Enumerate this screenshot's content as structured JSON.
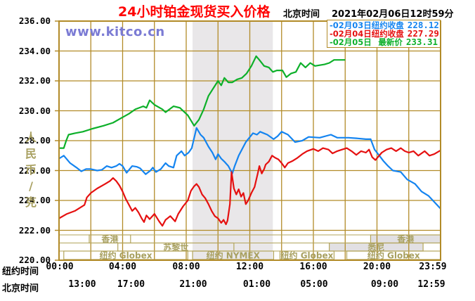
{
  "header": {
    "title": "24小时铂金现货买入价格",
    "clock_label": "北京时间",
    "clock_value": "2021年02月06日12时59分"
  },
  "watermark": "www.kitco.cn",
  "colors": {
    "title": "#FF0000",
    "watermark": "#7B7BD4",
    "grid": "#B28B28",
    "session_border": "#B3A55C",
    "session_text": "#A8A060",
    "band": "#E9E7E9",
    "session_fill": "#E2E0E3",
    "text": "#000000"
  },
  "chart_data": {
    "type": "line",
    "title": "24小时铂金现货买入价格",
    "ylabel": "人民币/克",
    "ylim": [
      220,
      236
    ],
    "y_ticks": [
      "236.00",
      "234.00",
      "232.00",
      "230.00",
      "228.00",
      "226.00",
      "224.00",
      "222.00",
      "220.00"
    ],
    "grid": true,
    "legend_position": "top-right",
    "x_range_hours": [
      0,
      24
    ],
    "x_ticks_newyork": {
      "name": "纽约时间",
      "hours": [
        0,
        4,
        8,
        12,
        16,
        20,
        24
      ],
      "labels": [
        "00:00",
        "04:00",
        "08:00",
        "12:00",
        "16:00",
        "20:00",
        "23:59"
      ]
    },
    "x_ticks_beijing": {
      "name": "北京时间",
      "hours": [
        0,
        4,
        8,
        12,
        16,
        20,
        24
      ],
      "labels": [
        "13:00",
        "17:00",
        "21:00",
        "01:00",
        "05:00",
        "09:00",
        "12:59"
      ]
    },
    "shaded_band_hours": [
      8.4,
      13.45
    ],
    "sessions": [
      {
        "row": 0,
        "start": 1.9,
        "end": 4.5,
        "label": "香港",
        "fill": "none"
      },
      {
        "row": 0,
        "start": 19.6,
        "end": 24,
        "label": "香港",
        "fill": "gray"
      },
      {
        "row": 1,
        "start": 3.7,
        "end": 11.0,
        "label": "苏黎世",
        "fill": "none"
      },
      {
        "row": 1,
        "start": 17.0,
        "end": 22.9,
        "label": "悉尼",
        "fill": "gray"
      },
      {
        "row": 2,
        "start": 0.3,
        "end": 8.1,
        "label": "纽约 Globex",
        "fill": "none"
      },
      {
        "row": 2,
        "start": 8.4,
        "end": 13.5,
        "label": "纽约 NYMEX",
        "fill": "none"
      },
      {
        "row": 2,
        "start": 13.9,
        "end": 17.3,
        "label": "纽约 Globex",
        "fill": "none"
      },
      {
        "row": 2,
        "start": 18.1,
        "end": 24,
        "label": "纽约 Globex",
        "fill": "none"
      }
    ],
    "series": [
      {
        "marker": "-",
        "name": "02月03日",
        "legend_label": "纽约收盘",
        "legend_value": "228.12",
        "color": "#1484F0",
        "points": [
          [
            0,
            226.8
          ],
          [
            0.3,
            227.0
          ],
          [
            0.7,
            226.5
          ],
          [
            1.1,
            226.2
          ],
          [
            1.4,
            225.95
          ],
          [
            1.7,
            226.1
          ],
          [
            2.0,
            226.1
          ],
          [
            2.4,
            226.0
          ],
          [
            2.7,
            226.05
          ],
          [
            3.0,
            226.3
          ],
          [
            3.3,
            226.2
          ],
          [
            3.6,
            226.3
          ],
          [
            3.8,
            226.45
          ],
          [
            4.0,
            226.3
          ],
          [
            4.25,
            225.85
          ],
          [
            4.6,
            226.3
          ],
          [
            4.9,
            226.25
          ],
          [
            5.1,
            226.15
          ],
          [
            5.45,
            225.75
          ],
          [
            5.75,
            226.0
          ],
          [
            5.9,
            226.2
          ],
          [
            6.1,
            225.9
          ],
          [
            6.4,
            226.1
          ],
          [
            6.7,
            226.5
          ],
          [
            6.9,
            226.3
          ],
          [
            7.2,
            226.2
          ],
          [
            7.4,
            227.0
          ],
          [
            7.7,
            227.3
          ],
          [
            7.9,
            227.0
          ],
          [
            8.15,
            227.2
          ],
          [
            8.35,
            227.5
          ],
          [
            8.65,
            228.85
          ],
          [
            8.9,
            228.4
          ],
          [
            9.1,
            228.2
          ],
          [
            9.4,
            227.6
          ],
          [
            9.65,
            227.2
          ],
          [
            9.85,
            226.75
          ],
          [
            10.0,
            227.1
          ],
          [
            10.2,
            226.8
          ],
          [
            10.4,
            226.6
          ],
          [
            10.65,
            226.3
          ],
          [
            10.9,
            225.8
          ],
          [
            11.05,
            226.3
          ],
          [
            11.3,
            227.0
          ],
          [
            11.75,
            227.9
          ],
          [
            12.2,
            228.5
          ],
          [
            12.45,
            228.4
          ],
          [
            12.65,
            228.6
          ],
          [
            13.1,
            228.4
          ],
          [
            13.5,
            228.1
          ],
          [
            13.75,
            228.3
          ],
          [
            14.0,
            228.6
          ],
          [
            14.4,
            228.4
          ],
          [
            14.85,
            227.9
          ],
          [
            15.3,
            228.0
          ],
          [
            15.7,
            228.25
          ],
          [
            16.4,
            228.2
          ],
          [
            17.1,
            228.4
          ],
          [
            17.5,
            228.2
          ],
          [
            18.2,
            228.2
          ],
          [
            18.8,
            228.15
          ],
          [
            19.3,
            228.1
          ],
          [
            19.6,
            228.1
          ],
          [
            19.85,
            227.4
          ],
          [
            20.15,
            227.0
          ],
          [
            20.4,
            226.65
          ],
          [
            20.7,
            226.3
          ],
          [
            21.0,
            226.0
          ],
          [
            21.5,
            225.9
          ],
          [
            21.9,
            225.4
          ],
          [
            22.4,
            225.1
          ],
          [
            22.8,
            224.6
          ],
          [
            23.25,
            224.3
          ],
          [
            23.6,
            223.9
          ],
          [
            24,
            223.45
          ]
        ]
      },
      {
        "marker": "-",
        "name": "02月04日",
        "legend_label": "纽约收盘",
        "legend_value": "227.29",
        "color": "#E51010",
        "points": [
          [
            0,
            222.8
          ],
          [
            0.5,
            223.1
          ],
          [
            1.0,
            223.3
          ],
          [
            1.6,
            223.7
          ],
          [
            1.75,
            224.2
          ],
          [
            2.0,
            224.5
          ],
          [
            2.4,
            224.8
          ],
          [
            2.9,
            225.1
          ],
          [
            3.2,
            225.3
          ],
          [
            3.4,
            225.5
          ],
          [
            3.6,
            225.3
          ],
          [
            3.8,
            225.0
          ],
          [
            4.0,
            224.6
          ],
          [
            4.2,
            224.1
          ],
          [
            4.4,
            223.7
          ],
          [
            4.6,
            223.3
          ],
          [
            4.8,
            223.5
          ],
          [
            5.0,
            223.2
          ],
          [
            5.2,
            222.8
          ],
          [
            5.35,
            222.55
          ],
          [
            5.5,
            223.0
          ],
          [
            5.7,
            222.75
          ],
          [
            6.0,
            223.1
          ],
          [
            6.3,
            222.6
          ],
          [
            6.5,
            222.3
          ],
          [
            6.7,
            222.7
          ],
          [
            7.0,
            222.95
          ],
          [
            7.3,
            222.6
          ],
          [
            7.5,
            223.1
          ],
          [
            7.8,
            223.6
          ],
          [
            8.1,
            224.0
          ],
          [
            8.3,
            224.65
          ],
          [
            8.5,
            224.95
          ],
          [
            8.65,
            225.1
          ],
          [
            8.8,
            224.9
          ],
          [
            9.0,
            224.4
          ],
          [
            9.2,
            224.15
          ],
          [
            9.4,
            223.75
          ],
          [
            9.6,
            223.3
          ],
          [
            9.8,
            222.95
          ],
          [
            10.0,
            222.8
          ],
          [
            10.2,
            222.5
          ],
          [
            10.35,
            222.7
          ],
          [
            10.5,
            222.4
          ],
          [
            10.6,
            222.65
          ],
          [
            10.75,
            223.75
          ],
          [
            10.85,
            225.9
          ],
          [
            11.0,
            224.8
          ],
          [
            11.15,
            224.4
          ],
          [
            11.3,
            224.75
          ],
          [
            11.45,
            224.25
          ],
          [
            11.6,
            224.5
          ],
          [
            11.75,
            223.75
          ],
          [
            11.9,
            224.0
          ],
          [
            12.1,
            224.5
          ],
          [
            12.3,
            224.9
          ],
          [
            12.5,
            225.8
          ],
          [
            12.6,
            226.3
          ],
          [
            12.75,
            225.8
          ],
          [
            12.9,
            226.1
          ],
          [
            13.0,
            226.4
          ],
          [
            13.2,
            226.6
          ],
          [
            13.4,
            227.0
          ],
          [
            13.6,
            226.85
          ],
          [
            13.8,
            226.75
          ],
          [
            14.0,
            226.5
          ],
          [
            14.2,
            226.2
          ],
          [
            14.4,
            226.5
          ],
          [
            14.7,
            226.65
          ],
          [
            15.0,
            226.85
          ],
          [
            15.3,
            227.1
          ],
          [
            15.6,
            227.3
          ],
          [
            16.0,
            227.45
          ],
          [
            16.3,
            227.3
          ],
          [
            16.6,
            227.5
          ],
          [
            16.95,
            227.4
          ],
          [
            17.2,
            227.15
          ],
          [
            17.5,
            227.3
          ],
          [
            17.8,
            227.4
          ],
          [
            18.1,
            227.5
          ],
          [
            18.4,
            227.3
          ],
          [
            18.7,
            227.05
          ],
          [
            19.0,
            227.3
          ],
          [
            19.3,
            227.2
          ],
          [
            19.5,
            227.4
          ],
          [
            19.7,
            226.9
          ],
          [
            19.9,
            226.7
          ],
          [
            20.3,
            227.2
          ],
          [
            20.6,
            227.4
          ],
          [
            20.9,
            227.5
          ],
          [
            21.2,
            227.3
          ],
          [
            21.5,
            227.5
          ],
          [
            21.75,
            227.3
          ],
          [
            22.0,
            227.2
          ],
          [
            22.3,
            227.3
          ],
          [
            22.6,
            227.0
          ],
          [
            23.0,
            227.3
          ],
          [
            23.3,
            227.0
          ],
          [
            23.6,
            227.1
          ],
          [
            24,
            227.35
          ]
        ]
      },
      {
        "marker": "-",
        "name": "02月05日",
        "legend_label": "最新价",
        "legend_value": "233.31",
        "color": "#0DB02A",
        "points": [
          [
            0,
            227.5
          ],
          [
            0.3,
            227.5
          ],
          [
            0.45,
            228.0
          ],
          [
            0.6,
            228.4
          ],
          [
            1.0,
            228.5
          ],
          [
            1.5,
            228.6
          ],
          [
            2.1,
            228.8
          ],
          [
            2.8,
            229.0
          ],
          [
            3.4,
            229.2
          ],
          [
            3.9,
            229.5
          ],
          [
            4.4,
            229.8
          ],
          [
            4.8,
            230.1
          ],
          [
            5.3,
            230.3
          ],
          [
            5.5,
            230.2
          ],
          [
            5.7,
            230.7
          ],
          [
            6.0,
            230.4
          ],
          [
            6.5,
            230.1
          ],
          [
            6.7,
            229.9
          ],
          [
            7.2,
            230.3
          ],
          [
            7.6,
            230.2
          ],
          [
            8.1,
            229.7
          ],
          [
            8.5,
            229.0
          ],
          [
            8.8,
            229.4
          ],
          [
            9.1,
            230.1
          ],
          [
            9.4,
            231.0
          ],
          [
            9.7,
            231.5
          ],
          [
            10.0,
            232.0
          ],
          [
            10.2,
            231.7
          ],
          [
            10.4,
            232.2
          ],
          [
            10.65,
            231.9
          ],
          [
            10.9,
            231.9
          ],
          [
            11.2,
            232.1
          ],
          [
            11.5,
            232.2
          ],
          [
            11.8,
            232.5
          ],
          [
            12.1,
            233.0
          ],
          [
            12.4,
            233.65
          ],
          [
            12.6,
            233.4
          ],
          [
            12.9,
            233.0
          ],
          [
            13.2,
            232.9
          ],
          [
            13.45,
            232.6
          ],
          [
            13.7,
            232.7
          ],
          [
            14.05,
            232.7
          ],
          [
            14.3,
            232.25
          ],
          [
            14.6,
            232.5
          ],
          [
            14.9,
            232.6
          ],
          [
            15.2,
            233.2
          ],
          [
            15.5,
            232.9
          ],
          [
            15.8,
            233.2
          ],
          [
            16.1,
            233.0
          ],
          [
            16.4,
            233.05
          ],
          [
            16.7,
            233.1
          ],
          [
            17.0,
            233.2
          ],
          [
            17.3,
            233.4
          ],
          [
            18.0,
            233.4
          ]
        ]
      }
    ]
  }
}
